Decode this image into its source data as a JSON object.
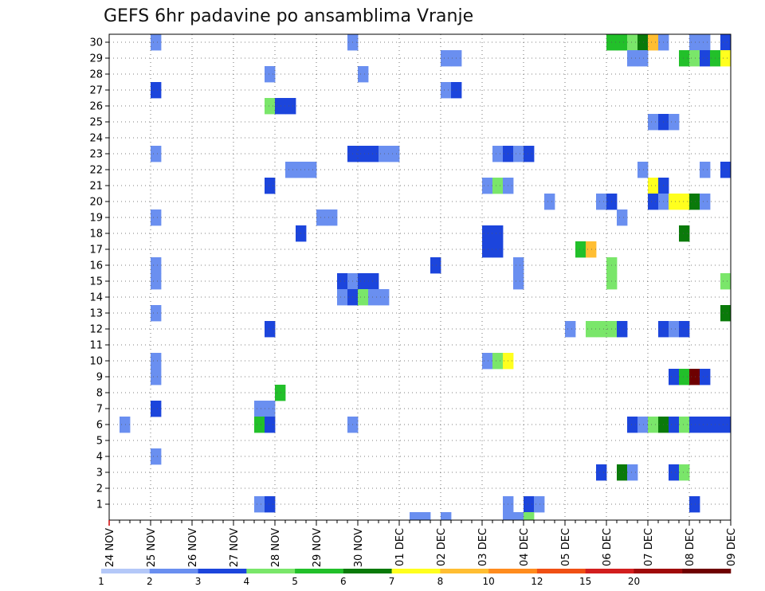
{
  "chart_data": {
    "type": "heatmap",
    "title": "GEFS 6hr padavine po ansamblima Vranje",
    "xlabel": "",
    "ylabel": "",
    "x_tick_labels": [
      "24 NOV",
      "25 NOV",
      "26 NOV",
      "27 NOV",
      "28 NOV",
      "29 NOV",
      "30 NOV",
      "01 DEC",
      "02 DEC",
      "03 DEC",
      "04 DEC",
      "05 DEC",
      "06 DEC",
      "07 DEC",
      "08 DEC",
      "09 DEC"
    ],
    "y_tick_labels": [
      "1",
      "2",
      "3",
      "4",
      "5",
      "6",
      "7",
      "8",
      "9",
      "10",
      "11",
      "12",
      "13",
      "14",
      "15",
      "16",
      "17",
      "18",
      "19",
      "20",
      "21",
      "22",
      "23",
      "24",
      "25",
      "26",
      "27",
      "28",
      "29",
      "30"
    ],
    "xlim_steps": [
      0,
      60
    ],
    "ylim": [
      0,
      30.5
    ],
    "grid": true,
    "colorbar": {
      "placement": "bottom",
      "levels": [
        1,
        2,
        3,
        4,
        5,
        6,
        7,
        8,
        10,
        12,
        15,
        20
      ],
      "labels": [
        "1",
        "2",
        "3",
        "4",
        "5",
        "6",
        "7",
        "8",
        "10",
        "12",
        "15",
        "20"
      ],
      "colors": [
        "#b4c8f8",
        "#6a8ff0",
        "#1c45dc",
        "#7ae66a",
        "#22c02a",
        "#0a7a0a",
        "#ffff1e",
        "#ffbe32",
        "#ff8c1e",
        "#f05014",
        "#d21e1e",
        "#a00a0a",
        "#6e0000"
      ]
    },
    "cells": [
      {
        "member": 30,
        "steps": [
          [
            4,
            1
          ],
          [
            23,
            1
          ],
          [
            48,
            4
          ],
          [
            49,
            4
          ],
          [
            50,
            3
          ],
          [
            51,
            5
          ],
          [
            52,
            7
          ],
          [
            53,
            1
          ],
          [
            56,
            1
          ],
          [
            57,
            1
          ],
          [
            59,
            2
          ]
        ]
      },
      {
        "member": 29,
        "steps": [
          [
            32,
            1
          ],
          [
            33,
            1
          ],
          [
            50,
            1
          ],
          [
            51,
            1
          ],
          [
            55,
            4
          ],
          [
            56,
            3
          ],
          [
            57,
            2
          ],
          [
            58,
            4
          ],
          [
            59,
            6
          ]
        ]
      },
      {
        "member": 28,
        "steps": [
          [
            15,
            1
          ],
          [
            24,
            1
          ]
        ]
      },
      {
        "member": 27,
        "steps": [
          [
            4,
            2
          ],
          [
            32,
            1
          ],
          [
            33,
            2
          ]
        ]
      },
      {
        "member": 26,
        "steps": [
          [
            15,
            3
          ],
          [
            16,
            2
          ],
          [
            17,
            2
          ]
        ]
      },
      {
        "member": 25,
        "steps": [
          [
            52,
            1
          ],
          [
            53,
            2
          ],
          [
            54,
            1
          ]
        ]
      },
      {
        "member": 23,
        "steps": [
          [
            4,
            1
          ],
          [
            23,
            2
          ],
          [
            24,
            2
          ],
          [
            25,
            2
          ],
          [
            26,
            1
          ],
          [
            27,
            1
          ],
          [
            37,
            1
          ],
          [
            38,
            2
          ],
          [
            39,
            1
          ],
          [
            40,
            2
          ]
        ]
      },
      {
        "member": 22,
        "steps": [
          [
            17,
            1
          ],
          [
            18,
            1
          ],
          [
            19,
            1
          ],
          [
            51,
            1
          ],
          [
            57,
            1
          ],
          [
            59,
            2
          ]
        ]
      },
      {
        "member": 21,
        "steps": [
          [
            15,
            2
          ],
          [
            36,
            1
          ],
          [
            37,
            3
          ],
          [
            38,
            1
          ],
          [
            52,
            6
          ],
          [
            53,
            2
          ]
        ]
      },
      {
        "member": 20,
        "steps": [
          [
            42,
            1
          ],
          [
            47,
            1
          ],
          [
            48,
            2
          ],
          [
            52,
            2
          ],
          [
            53,
            1
          ],
          [
            54,
            6
          ],
          [
            55,
            6
          ],
          [
            56,
            5
          ],
          [
            57,
            1
          ]
        ]
      },
      {
        "member": 19,
        "steps": [
          [
            4,
            1
          ],
          [
            20,
            1
          ],
          [
            21,
            1
          ],
          [
            49,
            1
          ]
        ]
      },
      {
        "member": 18,
        "steps": [
          [
            18,
            2
          ],
          [
            36,
            2
          ],
          [
            37,
            2
          ],
          [
            55,
            5
          ]
        ]
      },
      {
        "member": 17,
        "steps": [
          [
            36,
            2
          ],
          [
            37,
            2
          ],
          [
            45,
            4
          ],
          [
            46,
            7
          ]
        ]
      },
      {
        "member": 16,
        "steps": [
          [
            4,
            1
          ],
          [
            31,
            2
          ],
          [
            39,
            1
          ],
          [
            48,
            3
          ]
        ]
      },
      {
        "member": 15,
        "steps": [
          [
            4,
            1
          ],
          [
            22,
            2
          ],
          [
            23,
            1
          ],
          [
            24,
            2
          ],
          [
            25,
            2
          ],
          [
            39,
            1
          ],
          [
            48,
            3
          ],
          [
            59,
            3
          ]
        ]
      },
      {
        "member": 14,
        "steps": [
          [
            22,
            1
          ],
          [
            23,
            2
          ],
          [
            24,
            3
          ],
          [
            25,
            1
          ],
          [
            26,
            1
          ]
        ]
      },
      {
        "member": 13,
        "steps": [
          [
            4,
            1
          ],
          [
            59,
            5
          ]
        ]
      },
      {
        "member": 12,
        "steps": [
          [
            15,
            2
          ],
          [
            44,
            1
          ],
          [
            46,
            3
          ],
          [
            47,
            3
          ],
          [
            48,
            3
          ],
          [
            49,
            2
          ],
          [
            53,
            2
          ],
          [
            54,
            1
          ],
          [
            55,
            2
          ]
        ]
      },
      {
        "member": 10,
        "steps": [
          [
            4,
            1
          ],
          [
            36,
            1
          ],
          [
            37,
            3
          ],
          [
            38,
            6
          ]
        ]
      },
      {
        "member": 9,
        "steps": [
          [
            4,
            1
          ],
          [
            54,
            2
          ],
          [
            55,
            4
          ],
          [
            56,
            12
          ],
          [
            57,
            2
          ]
        ]
      },
      {
        "member": 8,
        "steps": [
          [
            16,
            4
          ]
        ]
      },
      {
        "member": 7,
        "steps": [
          [
            4,
            2
          ],
          [
            14,
            1
          ],
          [
            15,
            1
          ]
        ]
      },
      {
        "member": 6,
        "steps": [
          [
            1,
            1
          ],
          [
            14,
            4
          ],
          [
            15,
            2
          ],
          [
            23,
            1
          ],
          [
            50,
            2
          ],
          [
            51,
            1
          ],
          [
            52,
            3
          ],
          [
            53,
            5
          ],
          [
            54,
            2
          ],
          [
            55,
            3
          ],
          [
            56,
            2
          ],
          [
            57,
            2
          ],
          [
            58,
            2
          ],
          [
            59,
            2
          ]
        ]
      },
      {
        "member": 4,
        "steps": [
          [
            4,
            1
          ]
        ]
      },
      {
        "member": 3,
        "steps": [
          [
            47,
            2
          ],
          [
            49,
            5
          ],
          [
            50,
            1
          ],
          [
            54,
            2
          ],
          [
            55,
            3
          ]
        ]
      },
      {
        "member": 1,
        "steps": [
          [
            14,
            1
          ],
          [
            15,
            2
          ],
          [
            38,
            1
          ],
          [
            40,
            2
          ],
          [
            41,
            1
          ],
          [
            56,
            2
          ]
        ]
      },
      {
        "member": 0,
        "steps": [
          [
            29,
            1
          ],
          [
            30,
            1
          ],
          [
            32,
            1
          ],
          [
            38,
            1
          ],
          [
            39,
            1
          ],
          [
            40,
            3
          ]
        ]
      }
    ]
  }
}
